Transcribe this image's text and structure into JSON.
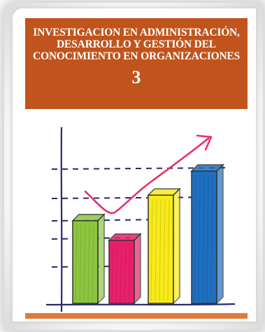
{
  "cover": {
    "title_lines": [
      "INVESTIGACION EN ADMINISTRACIÓN,",
      "DESARROLLO Y GESTIÓN DEL",
      "CONOCIMIENTO EN ORGANIZACIONES"
    ],
    "volume": "3"
  },
  "colors": {
    "header": "#c0541c",
    "bar_green": "#8cc63f",
    "bar_pink": "#e8206a",
    "bar_yellow": "#f7ea1a",
    "bar_blue": "#1f6fc0",
    "trend_arrow": "#e8306a"
  },
  "illustration": {
    "type": "hand-drawn bar chart with upward trend arrow",
    "bars_relative_heights": [
      0.55,
      0.42,
      0.72,
      0.88
    ]
  }
}
